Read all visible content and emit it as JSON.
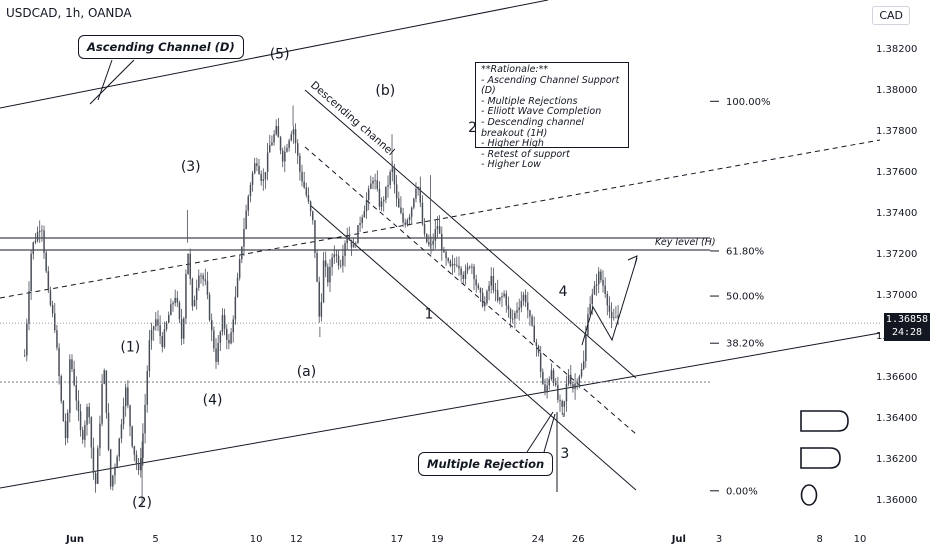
{
  "header": {
    "symbol": "USDCAD, 1h, OANDA",
    "currency": "CAD"
  },
  "price_tag": {
    "price": "1.36858",
    "countdown": "24:28"
  },
  "rationale": {
    "title": "**Rationale:**",
    "items": [
      "- Ascending Channel Support (D)",
      "- Multiple Rejections",
      "- Elliott Wave Completion",
      "- Descending channel breakout (1H)",
      "- Higher High",
      "- Retest of support",
      "- Higher Low"
    ]
  },
  "annotations": {
    "ascending_channel": "Ascending Channel (D)",
    "multiple_rejection": "Multiple Rejection",
    "descending_channel": "Descending channel",
    "key_level": "Key level (H)"
  },
  "wave_labels": [
    {
      "text": "(1)",
      "date": "Jun 3 18:00",
      "price": 1.3672
    },
    {
      "text": "(2)",
      "date": "Jun 4 08:00",
      "price": 1.3596
    },
    {
      "text": "(3)",
      "date": "Jun 6 18:00",
      "price": 1.376
    },
    {
      "text": "(4)",
      "date": "Jun 7 20:00",
      "price": 1.3646
    },
    {
      "text": "(5)",
      "date": "Jun 11 04:00",
      "price": 1.3815
    },
    {
      "text": "(a)",
      "date": "Jun 12 12:00",
      "price": 1.366
    },
    {
      "text": "(b)",
      "date": "Jun 16 10:00",
      "price": 1.3797
    },
    {
      "text": "1",
      "date": "Jun 18 14:00",
      "price": 1.3688
    },
    {
      "text": "2",
      "date": "Jun 20 18:00",
      "price": 1.3779
    },
    {
      "text": "3",
      "date": "Jun 25 08:00",
      "price": 1.362
    },
    {
      "text": "4",
      "date": "Jun 25 06:00",
      "price": 1.3699
    }
  ],
  "chart_data": {
    "type": "candlestick",
    "symbol": "USDCAD",
    "timeframe": "1h",
    "ylim": [
      1.3594,
      1.3836
    ],
    "y_ticks": [
      "1.38200",
      "1.38000",
      "1.37800",
      "1.37600",
      "1.37400",
      "1.37200",
      "1.37000",
      "1.36800",
      "1.36600",
      "1.36400",
      "1.36200",
      "1.36000"
    ],
    "x_ticks": [
      {
        "label": "Jun",
        "date": "Jun 1 00:00"
      },
      {
        "label": "5",
        "date": "Jun 5 00:00"
      },
      {
        "label": "10",
        "date": "Jun 10 00:00"
      },
      {
        "label": "12",
        "date": "Jun 12 00:00"
      },
      {
        "label": "17",
        "date": "Jun 17 00:00"
      },
      {
        "label": "19",
        "date": "Jun 19 00:00"
      },
      {
        "label": "24",
        "date": "Jun 24 00:00"
      },
      {
        "label": "26",
        "date": "Jun 26 00:00"
      },
      {
        "label": "Jul",
        "date": "Jul 1 00:00"
      },
      {
        "label": "3",
        "date": "Jul 3 00:00"
      },
      {
        "label": "8",
        "date": "Jul 8 00:00"
      },
      {
        "label": "10",
        "date": "Jul 10 00:00"
      }
    ],
    "path": [
      [
        "May 29 12:00",
        1.367
      ],
      [
        "May 29 20:00",
        1.3722
      ],
      [
        "May 30 08:00",
        1.3735
      ],
      [
        "May 30 16:00",
        1.37
      ],
      [
        "May 31 00:00",
        1.3684
      ],
      [
        "May 31 08:00",
        1.3645
      ],
      [
        "May 31 14:00",
        1.3626
      ],
      [
        "May 31 18:00",
        1.367
      ],
      [
        "Jun 1 00:00",
        1.3654
      ],
      [
        "Jun 1 08:00",
        1.3628
      ],
      [
        "Jun 1 16:00",
        1.3648
      ],
      [
        "Jun 1 20:00",
        1.3622
      ],
      [
        "Jun 2 00:00",
        1.3604
      ],
      [
        "Jun 2 06:00",
        1.364
      ],
      [
        "Jun 2 10:00",
        1.3667
      ],
      [
        "Jun 2 14:00",
        1.364
      ],
      [
        "Jun 2 18:00",
        1.3605
      ],
      [
        "Jun 3 04:00",
        1.3626
      ],
      [
        "Jun 3 12:00",
        1.3655
      ],
      [
        "Jun 3 20:00",
        1.3628
      ],
      [
        "Jun 4 04:00",
        1.3612
      ],
      [
        "Jun 4 10:00",
        1.3636
      ],
      [
        "Jun 4 16:00",
        1.3675
      ],
      [
        "Jun 5 00:00",
        1.3688
      ],
      [
        "Jun 5 08:00",
        1.3676
      ],
      [
        "Jun 5 16:00",
        1.369
      ],
      [
        "Jun 6 00:00",
        1.37
      ],
      [
        "Jun 6 08:00",
        1.3676
      ],
      [
        "Jun 6 14:00",
        1.3725
      ],
      [
        "Jun 6 20:00",
        1.3692
      ],
      [
        "Jun 7 04:00",
        1.3712
      ],
      [
        "Jun 7 12:00",
        1.3704
      ],
      [
        "Jun 7 18:00",
        1.3684
      ],
      [
        "Jun 8 00:00",
        1.3668
      ],
      [
        "Jun 8 08:00",
        1.3688
      ],
      [
        "Jun 8 16:00",
        1.3674
      ],
      [
        "Jun 9 00:00",
        1.37
      ],
      [
        "Jun 9 08:00",
        1.3728
      ],
      [
        "Jun 9 16:00",
        1.3752
      ],
      [
        "Jun 10 00:00",
        1.3766
      ],
      [
        "Jun 10 08:00",
        1.3754
      ],
      [
        "Jun 10 16:00",
        1.3772
      ],
      [
        "Jun 11 00:00",
        1.378
      ],
      [
        "Jun 11 08:00",
        1.3766
      ],
      [
        "Jun 11 14:00",
        1.3775
      ],
      [
        "Jun 11 20:00",
        1.3782
      ],
      [
        "Jun 12 04:00",
        1.376
      ],
      [
        "Jun 12 12:00",
        1.3748
      ],
      [
        "Jun 12 20:00",
        1.3734
      ],
      [
        "Jun 13 04:00",
        1.3684
      ],
      [
        "Jun 13 08:00",
        1.3716
      ],
      [
        "Jun 13 14:00",
        1.3706
      ],
      [
        "Jun 13 20:00",
        1.3722
      ],
      [
        "Jun 14 04:00",
        1.3714
      ],
      [
        "Jun 14 12:00",
        1.373
      ],
      [
        "Jun 14 20:00",
        1.3722
      ],
      [
        "Jun 15 04:00",
        1.3736
      ],
      [
        "Jun 15 12:00",
        1.3746
      ],
      [
        "Jun 15 20:00",
        1.3758
      ],
      [
        "Jun 16 04:00",
        1.3742
      ],
      [
        "Jun 16 12:00",
        1.3752
      ],
      [
        "Jun 16 18:00",
        1.3762
      ],
      [
        "Jun 17 00:00",
        1.3744
      ],
      [
        "Jun 17 08:00",
        1.3734
      ],
      [
        "Jun 17 16:00",
        1.374
      ],
      [
        "Jun 18 00:00",
        1.3756
      ],
      [
        "Jun 18 08:00",
        1.3728
      ],
      [
        "Jun 18 16:00",
        1.3722
      ],
      [
        "Jun 19 00:00",
        1.3734
      ],
      [
        "Jun 19 08:00",
        1.3718
      ],
      [
        "Jun 19 16:00",
        1.3712
      ],
      [
        "Jun 20 00:00",
        1.3716
      ],
      [
        "Jun 20 08:00",
        1.3708
      ],
      [
        "Jun 20 16:00",
        1.3716
      ],
      [
        "Jun 21 00:00",
        1.3702
      ],
      [
        "Jun 21 08:00",
        1.3694
      ],
      [
        "Jun 21 16:00",
        1.3708
      ],
      [
        "Jun 22 00:00",
        1.3696
      ],
      [
        "Jun 22 08:00",
        1.37
      ],
      [
        "Jun 22 16:00",
        1.3686
      ],
      [
        "Jun 23 00:00",
        1.3694
      ],
      [
        "Jun 23 08:00",
        1.37
      ],
      [
        "Jun 23 16:00",
        1.3684
      ],
      [
        "Jun 24 00:00",
        1.3672
      ],
      [
        "Jun 24 08:00",
        1.365
      ],
      [
        "Jun 24 16:00",
        1.3664
      ],
      [
        "Jun 25 00:00",
        1.3648
      ],
      [
        "Jun 25 06:00",
        1.3642
      ],
      [
        "Jun 25 12:00",
        1.3662
      ],
      [
        "Jun 25 18:00",
        1.3654
      ],
      [
        "Jun 26 00:00",
        1.366
      ],
      [
        "Jun 26 06:00",
        1.3664
      ],
      [
        "Jun 26 12:00",
        1.3694
      ],
      [
        "Jun 26 18:00",
        1.37
      ],
      [
        "Jun 27 00:00",
        1.371
      ],
      [
        "Jun 27 08:00",
        1.3702
      ],
      [
        "Jun 27 16:00",
        1.3686
      ],
      [
        "Jun 28 00:00",
        1.369
      ]
    ],
    "key_level": [
      1.3724,
      1.3732
    ],
    "fib_levels": [
      {
        "label": "100.00%",
        "price": 1.3794
      },
      {
        "label": "61.80%",
        "price": 1.3721
      },
      {
        "label": "50.00%",
        "price": 1.3699
      },
      {
        "label": "38.20%",
        "price": 1.3676
      },
      {
        "label": "0.00%",
        "price": 1.3604
      }
    ],
    "current_price": 1.36858
  }
}
